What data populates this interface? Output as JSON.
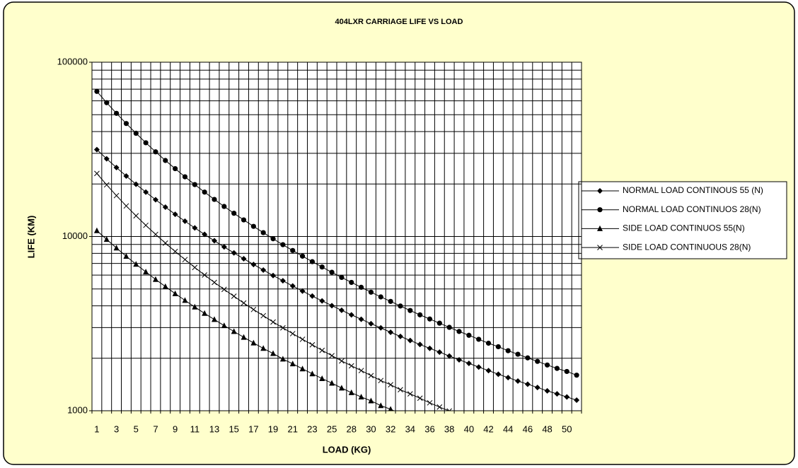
{
  "chart_data": {
    "type": "line",
    "title": "404LXR CARRIAGE  LIFE VS LOAD",
    "x_label": "LOAD (KG)",
    "y_label": "LIFE (KM)",
    "categories": [
      1,
      null,
      3,
      null,
      5,
      null,
      7,
      null,
      9,
      null,
      11,
      null,
      13,
      null,
      15,
      null,
      17,
      null,
      19,
      null,
      21,
      null,
      23,
      null,
      25,
      null,
      28,
      null,
      30,
      null,
      32,
      null,
      34,
      null,
      36,
      null,
      38,
      null,
      40,
      null,
      42,
      null,
      44,
      null,
      46,
      null,
      48,
      null,
      50,
      null
    ],
    "series": [
      {
        "name": "NORMAL LOAD CONTINOUS  55 (N)",
        "color": "#000000",
        "marker": "diamond",
        "values": [
          31500,
          27900,
          24850,
          22220,
          19940,
          17970,
          16250,
          14740,
          13410,
          12240,
          11200,
          10280,
          9450,
          8710,
          8050,
          7450,
          6910,
          6420,
          5970,
          5570,
          5200,
          4860,
          4550,
          4270,
          4010,
          3770,
          3550,
          3350,
          3160,
          2990,
          2820,
          2670,
          2530,
          2400,
          2280,
          2170,
          2060,
          1960,
          1870,
          1780,
          1700,
          1620,
          1550,
          1480,
          1420,
          1360,
          1300,
          1250,
          1200,
          1150
        ]
      },
      {
        "name": "NORMAL LOAD CONTINUOS  28(N)",
        "color": "#000000",
        "marker": "circle",
        "values": [
          68000,
          58600,
          50900,
          44500,
          39100,
          34500,
          30600,
          27300,
          24500,
          22000,
          19850,
          17970,
          16320,
          14870,
          13590,
          12450,
          11430,
          10520,
          9700,
          8970,
          8310,
          7710,
          7170,
          6680,
          6230,
          5820,
          5450,
          5110,
          4790,
          4500,
          4240,
          3990,
          3760,
          3550,
          3360,
          3180,
          3010,
          2850,
          2710,
          2570,
          2440,
          2330,
          2210,
          2110,
          2010,
          1920,
          1830,
          1750,
          1680,
          1600
        ]
      },
      {
        "name": "SIDE LOAD CONTINUOS 55(N)",
        "color": "#000000",
        "marker": "triangle",
        "values": [
          10800,
          9620,
          8590,
          7700,
          6930,
          6260,
          5670,
          5160,
          4700,
          4300,
          3940,
          3620,
          3340,
          3080,
          2850,
          2640,
          2450,
          2280,
          2130,
          1980,
          1860,
          1740,
          1630,
          1530,
          1440,
          1350,
          1270,
          1200,
          1140,
          1070,
          1020,
          962,
          null,
          null,
          null,
          null,
          null,
          null,
          null,
          null,
          null,
          null,
          null,
          null,
          null,
          null,
          null,
          null,
          null,
          null
        ]
      },
      {
        "name": "SIDE LOAD CONTINUOUS 28(N)",
        "color": "#000000",
        "marker": "cross",
        "values": [
          22990,
          19790,
          17160,
          14970,
          13140,
          11590,
          10280,
          9160,
          8200,
          7370,
          6640,
          6010,
          5450,
          4970,
          4540,
          4150,
          3810,
          3510,
          3230,
          2990,
          2770,
          2570,
          2390,
          2220,
          2070,
          1930,
          1810,
          1700,
          1590,
          1490,
          1410,
          1320,
          1250,
          1180,
          1110,
          1050,
          997,
          null,
          null,
          null,
          null,
          null,
          null,
          null,
          null,
          null,
          null,
          null,
          null,
          null
        ]
      }
    ],
    "ylim": [
      1000,
      100000
    ],
    "yticks": [
      1000,
      10000,
      100000
    ],
    "log_y": true,
    "grid": true,
    "minor_grid": true,
    "legend": "right"
  }
}
